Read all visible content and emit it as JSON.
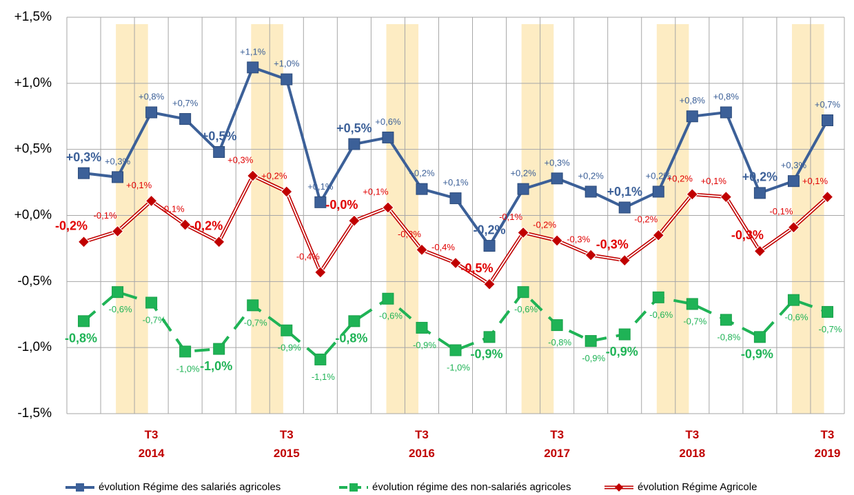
{
  "chart_data": {
    "type": "line",
    "categories": [
      null,
      null,
      "T3 2014",
      null,
      null,
      null,
      "T3 2015",
      null,
      null,
      null,
      "T3 2016",
      null,
      null,
      null,
      "T3 2017",
      null,
      null,
      null,
      "T3 2018",
      null,
      null,
      null,
      "T3 2019"
    ],
    "ylim": [
      -1.5,
      1.5
    ],
    "yticks": [
      {
        "value": -1.5,
        "label": "-1,5%"
      },
      {
        "value": -1.0,
        "label": "-1,0%"
      },
      {
        "value": -0.5,
        "label": "-0,5%"
      },
      {
        "value": 0,
        "label": "+0,0%"
      },
      {
        "value": 0.5,
        "label": "+0,5%"
      },
      {
        "value": 1.0,
        "label": "+1,0%"
      },
      {
        "value": 1.5,
        "label": "+1,5%"
      }
    ],
    "grid": true,
    "legend": "bottom",
    "series": [
      {
        "name": "évolution Régime des salariés agricoles",
        "color": "#3c6098",
        "values": [
          0.32,
          0.29,
          0.78,
          0.73,
          0.48,
          1.12,
          1.03,
          0.1,
          0.54,
          0.59,
          0.2,
          0.13,
          -0.23,
          0.2,
          0.28,
          0.18,
          0.06,
          0.18,
          0.75,
          0.78,
          0.17,
          0.26,
          0.72
        ],
        "value_labels": [
          "+0,3%",
          "+0,3%",
          "+0,8%",
          "+0,7%",
          "+0,5%",
          "+1,1%",
          "+1,0%",
          "+0,1%",
          "+0,5%",
          "+0,6%",
          "+0,2%",
          "+0,1%",
          "-0,2%",
          "+0,2%",
          "+0,3%",
          "+0,2%",
          "+0,1%",
          "+0,2%",
          "+0,8%",
          "+0,8%",
          "+0,2%",
          "+0,3%",
          "+0,7%"
        ]
      },
      {
        "name": "évolution régime des non-salariés agricoles",
        "color": "#1fb356",
        "values": [
          -0.8,
          -0.58,
          -0.66,
          -1.03,
          -1.01,
          -0.68,
          -0.87,
          -1.09,
          -0.8,
          -0.63,
          -0.85,
          -1.02,
          -0.92,
          -0.58,
          -0.83,
          -0.95,
          -0.9,
          -0.62,
          -0.67,
          -0.79,
          -0.92,
          -0.64,
          -0.73
        ],
        "value_labels": [
          "-0,8%",
          "-0,6%",
          "-0,7%",
          "-1,0%",
          "-1,0%",
          "-0,7%",
          "-0,9%",
          "-1,1%",
          "-0,8%",
          "-0,6%",
          "-0,9%",
          "-1,0%",
          "-0,9%",
          "-0,6%",
          "-0,8%",
          "-0,9%",
          "-0,9%",
          "-0,6%",
          "-0,7%",
          "-0,8%",
          "-0,9%",
          "-0,6%",
          "-0,7%"
        ]
      },
      {
        "name": "évolution Régime Agricole",
        "color": "#c00000",
        "values": [
          -0.2,
          -0.12,
          0.11,
          -0.07,
          -0.2,
          0.3,
          0.18,
          -0.43,
          -0.04,
          0.06,
          -0.26,
          -0.36,
          -0.52,
          -0.13,
          -0.19,
          -0.3,
          -0.34,
          -0.15,
          0.16,
          0.14,
          -0.27,
          -0.09,
          0.14
        ],
        "value_labels": [
          "-0,2%",
          "-0,1%",
          "+0,1%",
          "-0,1%",
          "-0,2%",
          "+0,3%",
          "+0,2%",
          "-0,4%",
          "-0,0%",
          "+0,1%",
          "-0,3%",
          "-0,4%",
          "-0,5%",
          "-0,1%",
          "-0,2%",
          "-0,3%",
          "-0,3%",
          "-0,2%",
          "+0,2%",
          "+0,1%",
          "-0,3%",
          "-0,1%",
          "+0,1%"
        ]
      }
    ]
  }
}
